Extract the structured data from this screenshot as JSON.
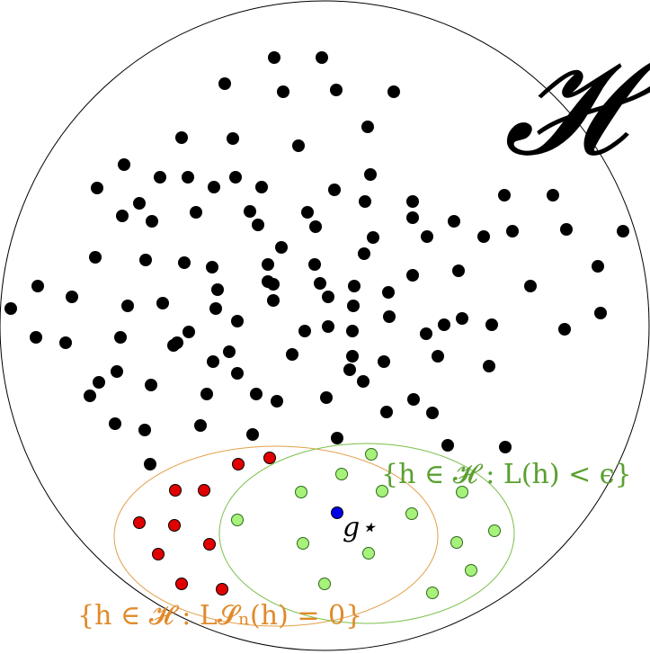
{
  "figure": {
    "space_symbol": "𝓗",
    "target_label": "g⋆",
    "green_set_label": "{h ∈ 𝓗 :  L(h) < ϵ}",
    "orange_set_label": "{h ∈ 𝓗 :  L𝓢ₙ(h) = 0}",
    "colors": {
      "outline": "#000000",
      "black_point": "#000000",
      "red_point": "#e00000",
      "green_point": "#a6f27a",
      "green_point_stroke": "#2d6a1a",
      "target_point": "#0000e6",
      "orange_ellipse": "#e2a04a",
      "green_ellipse": "#7bbf4a",
      "orange_text": "#e08a2a",
      "green_text": "#5aa030"
    }
  }
}
